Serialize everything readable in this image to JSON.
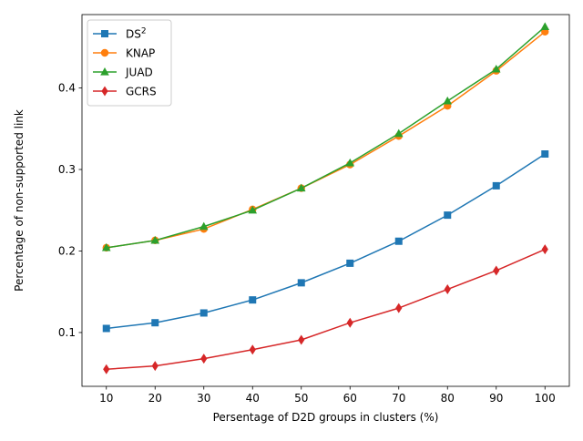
{
  "chart_data": {
    "type": "line",
    "title": "",
    "xlabel": "Persentage of D2D groups in clusters (%)",
    "ylabel": "Percentage of non-supported link",
    "x": [
      10,
      20,
      30,
      40,
      50,
      60,
      70,
      80,
      90,
      100
    ],
    "xlim": [
      5,
      105
    ],
    "ylim": [
      0.034,
      0.49
    ],
    "xticks": [
      "10",
      "20",
      "30",
      "40",
      "50",
      "60",
      "70",
      "80",
      "90",
      "100"
    ],
    "yticks": [
      "0.1",
      "0.2",
      "0.3",
      "0.4"
    ],
    "ytick_values": [
      0.1,
      0.2,
      0.3,
      0.4
    ],
    "grid": false,
    "legend_position": "top-left",
    "series": [
      {
        "name": "DS",
        "name_sup": "2",
        "color": "#1f77b4",
        "marker": "square",
        "values": [
          0.105,
          0.112,
          0.124,
          0.14,
          0.161,
          0.185,
          0.212,
          0.244,
          0.28,
          0.319
        ]
      },
      {
        "name": "KNAP",
        "color": "#ff7f0e",
        "marker": "circle",
        "values": [
          0.204,
          0.213,
          0.227,
          0.251,
          0.277,
          0.306,
          0.341,
          0.378,
          0.421,
          0.469
        ]
      },
      {
        "name": "JUAD",
        "color": "#2ca02c",
        "marker": "triangle",
        "values": [
          0.204,
          0.213,
          0.23,
          0.25,
          0.277,
          0.308,
          0.344,
          0.384,
          0.423,
          0.475
        ]
      },
      {
        "name": "GCRS",
        "color": "#d62728",
        "marker": "diamond",
        "values": [
          0.055,
          0.059,
          0.068,
          0.079,
          0.091,
          0.112,
          0.13,
          0.153,
          0.176,
          0.202
        ]
      }
    ]
  }
}
